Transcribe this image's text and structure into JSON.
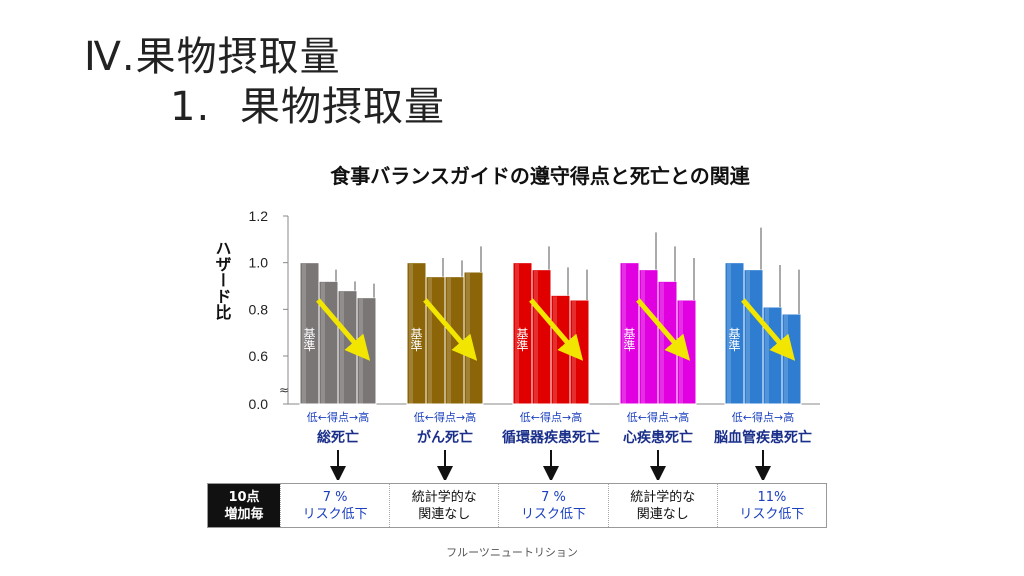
{
  "slide": {
    "title": "Ⅳ.果物摂取量",
    "subtitle_num": "1.",
    "subtitle_text": "果物摂取量"
  },
  "chart_data": {
    "type": "bar",
    "title": "食事バランスガイドの遵守得点と死亡との関連",
    "ylabel": "ハザード比",
    "ylim": [
      0,
      1.2
    ],
    "yticks": [
      "0.0",
      "0.6",
      "0.8",
      "1.0",
      "1.2"
    ],
    "axis_break": "≈",
    "baseline_label": "基準",
    "x_sublabel": "低←得点→高",
    "groups": [
      {
        "name": "総死亡",
        "color": "#7a7676",
        "values": [
          1.0,
          0.92,
          0.88,
          0.85
        ],
        "ci_upper": [
          1.0,
          0.97,
          0.92,
          0.91
        ]
      },
      {
        "name": "がん死亡",
        "color": "#8b6508",
        "values": [
          1.0,
          0.94,
          0.94,
          0.96
        ],
        "ci_upper": [
          1.0,
          1.02,
          1.01,
          1.07
        ]
      },
      {
        "name": "循環器疾患死亡",
        "color": "#e00000",
        "values": [
          1.0,
          0.97,
          0.86,
          0.84
        ],
        "ci_upper": [
          1.0,
          1.07,
          0.98,
          0.97
        ]
      },
      {
        "name": "心疾患死亡",
        "color": "#e000e0",
        "values": [
          1.0,
          0.97,
          0.92,
          0.84
        ],
        "ci_upper": [
          1.0,
          1.13,
          1.07,
          1.02
        ]
      },
      {
        "name": "脳血管疾患死亡",
        "color": "#2e7dd0",
        "values": [
          1.0,
          0.97,
          0.81,
          0.78
        ],
        "ci_upper": [
          1.0,
          1.15,
          0.99,
          0.97
        ]
      }
    ],
    "grid": false,
    "legend": "none"
  },
  "table": {
    "header_line1": "10点",
    "header_line2": "増加毎",
    "cells": [
      {
        "line1": "7 %",
        "line2": "リスク低下",
        "style": "blue"
      },
      {
        "line1": "統計学的な",
        "line2": "関連なし",
        "style": "black"
      },
      {
        "line1": "7 %",
        "line2": "リスク低下",
        "style": "blue"
      },
      {
        "line1": "統計学的な",
        "line2": "関連なし",
        "style": "black"
      },
      {
        "line1": "11%",
        "line2": "リスク低下",
        "style": "blue"
      }
    ]
  },
  "footer": "フルーツニュートリション"
}
